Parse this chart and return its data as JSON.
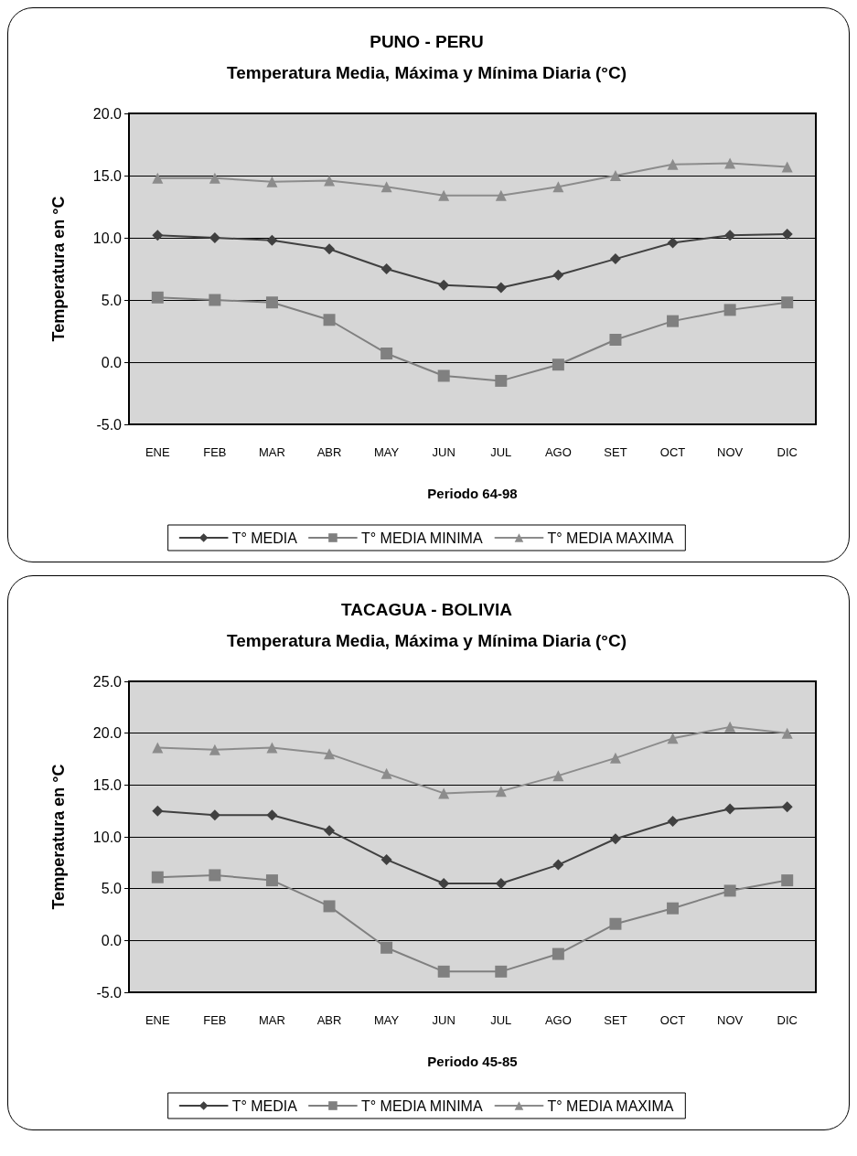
{
  "chart_data": [
    {
      "type": "line",
      "title": "PUNO - PERU",
      "subtitle": "Temperatura Media, Máxima y Mínima Diaria (°C)",
      "xlabel": "Periodo 64-98",
      "ylabel": "Temperatura en °C",
      "categories": [
        "ENE",
        "FEB",
        "MAR",
        "ABR",
        "MAY",
        "JUN",
        "JUL",
        "AGO",
        "SET",
        "OCT",
        "NOV",
        "DIC"
      ],
      "series": [
        {
          "name": "T° MEDIA",
          "color": "#404040",
          "marker": "diamond",
          "values": [
            10.2,
            10.0,
            9.8,
            9.1,
            7.5,
            6.2,
            6.0,
            7.0,
            8.3,
            9.6,
            10.2,
            10.3
          ]
        },
        {
          "name": "T° MEDIA MINIMA",
          "color": "#808080",
          "marker": "square",
          "values": [
            5.2,
            5.0,
            4.8,
            3.4,
            0.7,
            -1.1,
            -1.5,
            -0.2,
            1.8,
            3.3,
            4.2,
            4.8
          ]
        },
        {
          "name": "T° MEDIA MAXIMA",
          "color": "#8c8c8c",
          "marker": "triangle",
          "values": [
            14.8,
            14.8,
            14.5,
            14.6,
            14.1,
            13.4,
            13.4,
            14.1,
            15.0,
            15.9,
            16.0,
            15.7
          ]
        }
      ],
      "ylim": [
        -5,
        20
      ],
      "yticks": [
        {
          "value": -5,
          "label": "-5.0"
        },
        {
          "value": 0,
          "label": "0.0"
        },
        {
          "value": 5,
          "label": "5.0"
        },
        {
          "value": 10,
          "label": "10.0"
        },
        {
          "value": 15,
          "label": "15.0"
        },
        {
          "value": 20,
          "label": "20.0"
        }
      ],
      "grid": "y",
      "legend": "bottom",
      "line_style": "solid"
    },
    {
      "type": "line",
      "title": "TACAGUA - BOLIVIA",
      "subtitle": "Temperatura Media, Máxima y Mínima Diaria (°C)",
      "xlabel": "Periodo 45-85",
      "ylabel": "Temperatura en °C",
      "categories": [
        "ENE",
        "FEB",
        "MAR",
        "ABR",
        "MAY",
        "JUN",
        "JUL",
        "AGO",
        "SET",
        "OCT",
        "NOV",
        "DIC"
      ],
      "series": [
        {
          "name": "T° MEDIA",
          "color": "#404040",
          "marker": "diamond",
          "values": [
            12.5,
            12.1,
            12.1,
            10.6,
            7.8,
            5.5,
            5.5,
            7.3,
            9.8,
            11.5,
            12.7,
            12.9
          ]
        },
        {
          "name": "T° MEDIA MINIMA",
          "color": "#808080",
          "marker": "square",
          "values": [
            6.1,
            6.3,
            5.8,
            3.3,
            -0.7,
            -3.0,
            -3.0,
            -1.3,
            1.6,
            3.1,
            4.8,
            5.8
          ]
        },
        {
          "name": "T° MEDIA MAXIMA",
          "color": "#8c8c8c",
          "marker": "triangle",
          "values": [
            18.6,
            18.4,
            18.6,
            18.0,
            16.1,
            14.2,
            14.4,
            15.9,
            17.6,
            19.5,
            20.6,
            20.0
          ]
        }
      ],
      "ylim": [
        -5,
        25
      ],
      "yticks": [
        {
          "value": -5,
          "label": "-5.0"
        },
        {
          "value": 0,
          "label": "0.0"
        },
        {
          "value": 5,
          "label": "5.0"
        },
        {
          "value": 10,
          "label": "10.0"
        },
        {
          "value": 15,
          "label": "15.0"
        },
        {
          "value": 20,
          "label": "20.0"
        },
        {
          "value": 25,
          "label": "25.0"
        }
      ],
      "grid": "y",
      "legend": "bottom",
      "line_style": "solid"
    }
  ]
}
